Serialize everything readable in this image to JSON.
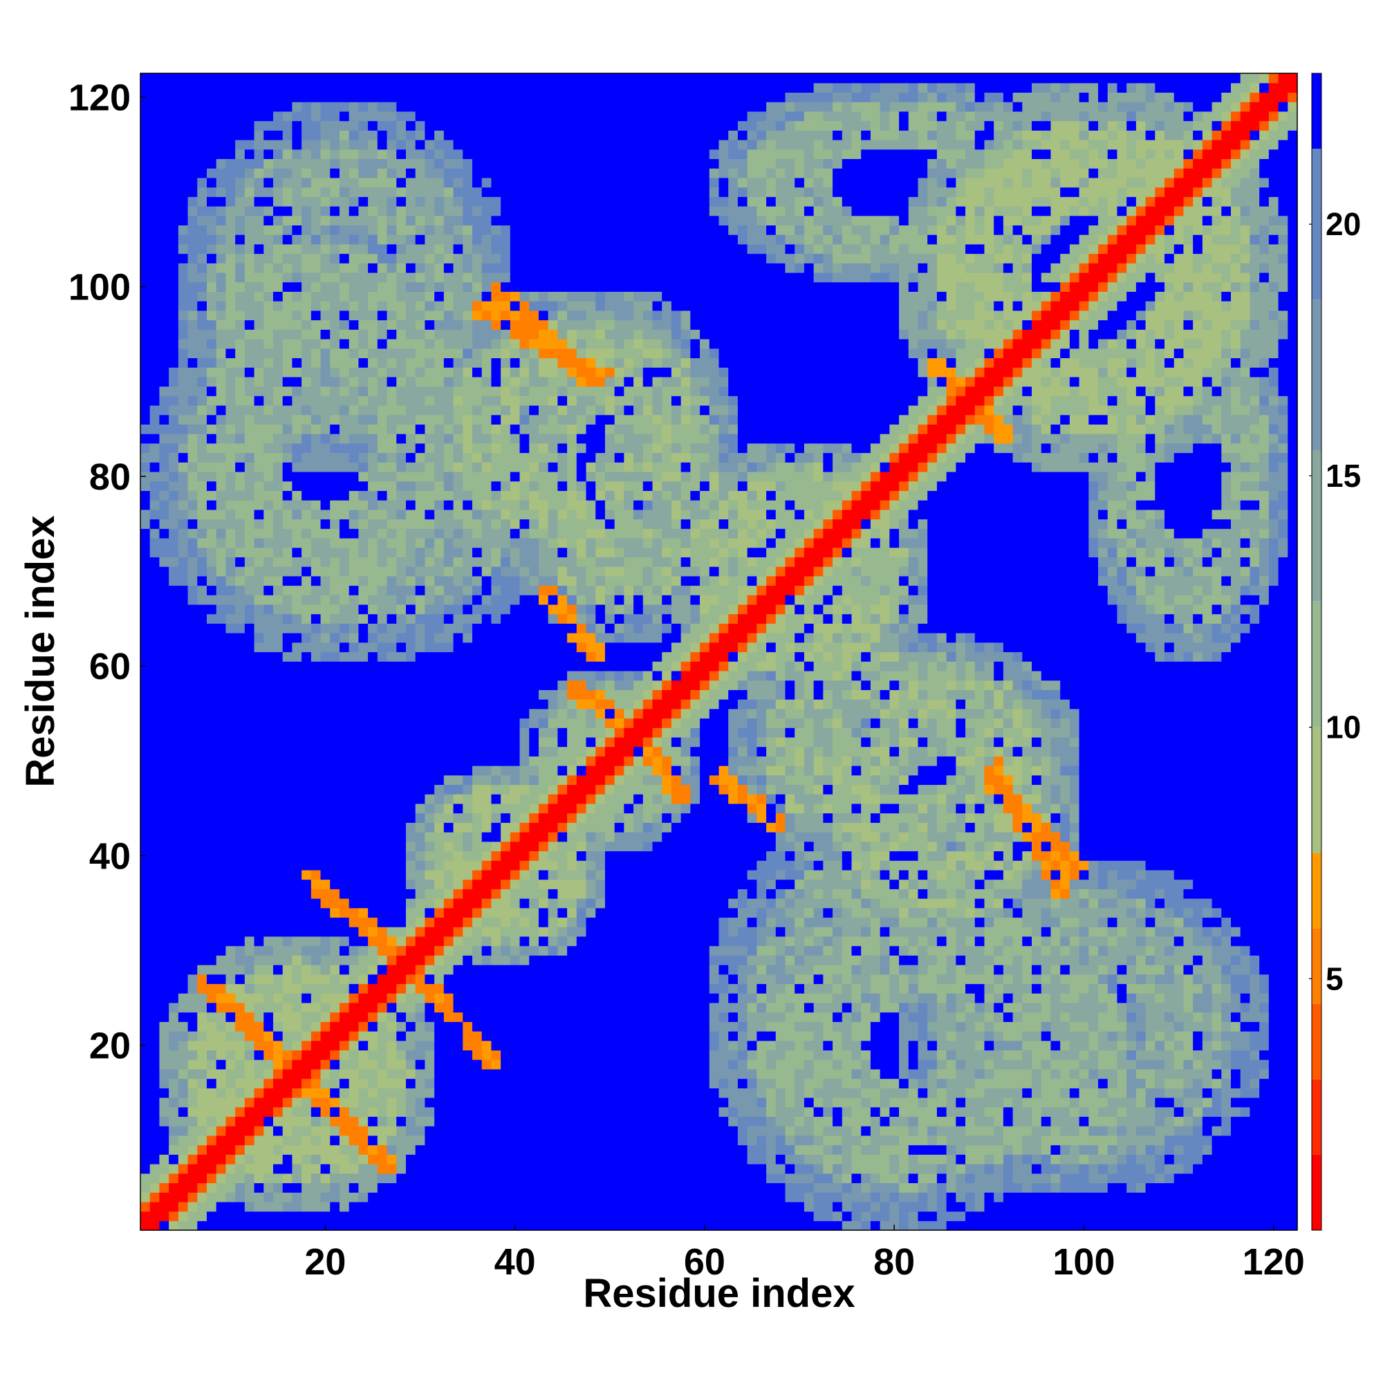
{
  "chart_data": {
    "type": "heatmap",
    "title": "",
    "xlabel": "Residue index",
    "ylabel": "Residue index",
    "n_residues": 122,
    "xlim": [
      1,
      122
    ],
    "ylim": [
      1,
      122
    ],
    "x_ticks": [
      "20",
      "40",
      "60",
      "80",
      "100",
      "120"
    ],
    "y_ticks": [
      "20",
      "40",
      "60",
      "80",
      "100",
      "120"
    ],
    "x_tick_values": [
      20,
      40,
      60,
      80,
      100,
      120
    ],
    "y_tick_values": [
      20,
      40,
      60,
      80,
      100,
      120
    ],
    "colorbar": {
      "range": [
        0,
        23
      ],
      "ticks": [
        "5",
        "10",
        "15",
        "20"
      ],
      "tick_values": [
        5,
        10,
        15,
        20
      ],
      "levels": [
        {
          "from": 0,
          "to": 1.5,
          "color": "#ff0000"
        },
        {
          "from": 1.5,
          "to": 3.0,
          "color": "#ff2a00"
        },
        {
          "from": 3.0,
          "to": 4.5,
          "color": "#ff5a00"
        },
        {
          "from": 4.5,
          "to": 6.0,
          "color": "#ff7f00"
        },
        {
          "from": 6.0,
          "to": 7.5,
          "color": "#ff9a00"
        },
        {
          "from": 7.5,
          "to": 10.0,
          "color": "#a8c080"
        },
        {
          "from": 10.0,
          "to": 12.5,
          "color": "#98b890"
        },
        {
          "from": 12.5,
          "to": 15.5,
          "color": "#88a8a0"
        },
        {
          "from": 15.5,
          "to": 18.5,
          "color": "#7898b0"
        },
        {
          "from": 18.5,
          "to": 21.5,
          "color": "#6688c0"
        },
        {
          "from": 21.5,
          "to": 23.0,
          "color": "#0000ff"
        }
      ]
    },
    "structure": {
      "background_value": 23,
      "diagonal_value": 0.5,
      "contact_clusters": [
        {
          "i": [
            2,
            32
          ],
          "j": [
            2,
            32
          ],
          "value": 11
        },
        {
          "i": [
            28,
            50
          ],
          "j": [
            28,
            50
          ],
          "value": 12
        },
        {
          "i": [
            40,
            60
          ],
          "j": [
            40,
            60
          ],
          "value": 13
        },
        {
          "i": [
            56,
            84
          ],
          "j": [
            56,
            84
          ],
          "value": 12
        },
        {
          "i": [
            80,
            122
          ],
          "j": [
            80,
            122
          ],
          "value": 11
        },
        {
          "i": [
            4,
            36
          ],
          "j": [
            60,
            110
          ],
          "value": 13
        },
        {
          "i": [
            60,
            100
          ],
          "j": [
            0,
            46
          ],
          "value": 14
        },
        {
          "i": [
            30,
            60
          ],
          "j": [
            70,
            100
          ],
          "value": 12
        },
        {
          "i": [
            62,
            100
          ],
          "j": [
            38,
            64
          ],
          "value": 12
        },
        {
          "i": [
            80,
            120
          ],
          "j": [
            4,
            40
          ],
          "value": 14
        },
        {
          "i": [
            100,
            122
          ],
          "j": [
            60,
            100
          ],
          "value": 13
        }
      ],
      "strand_pairs": [
        {
          "from": [
            7,
            27
          ],
          "to": [
            27,
            7
          ],
          "value": 5
        },
        {
          "from": [
            18,
            38
          ],
          "to": [
            28,
            29
          ],
          "value": 5
        },
        {
          "from": [
            30,
            27
          ],
          "to": [
            38,
            18
          ],
          "value": 5
        },
        {
          "from": [
            46,
            58
          ],
          "to": [
            54,
            52
          ],
          "value": 5
        },
        {
          "from": [
            61,
            49
          ],
          "to": [
            68,
            43
          ],
          "value": 5
        },
        {
          "from": [
            36,
            98
          ],
          "to": [
            50,
            90
          ],
          "value": 5
        },
        {
          "from": [
            86,
            90
          ],
          "to": [
            92,
            84
          ],
          "value": 5
        },
        {
          "from": [
            90,
            48
          ],
          "to": [
            100,
            38
          ],
          "value": 5
        }
      ]
    }
  }
}
